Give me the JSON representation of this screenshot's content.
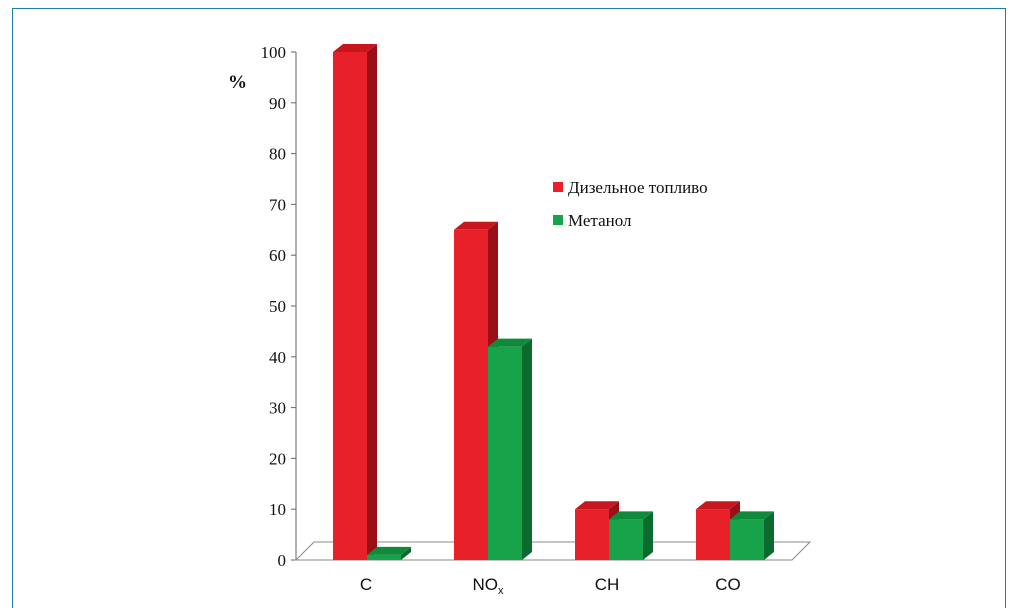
{
  "chart_data": {
    "type": "bar",
    "title": "",
    "ylabel": "%",
    "xlabel": "",
    "ylim": [
      0,
      100
    ],
    "yticks": [
      0,
      10,
      20,
      30,
      40,
      50,
      60,
      70,
      80,
      90,
      100
    ],
    "categories": [
      "C",
      "NOx",
      "CH",
      "CO"
    ],
    "category_labels": [
      {
        "main": "C",
        "sub": ""
      },
      {
        "main": "NO",
        "sub": "x"
      },
      {
        "main": "CH",
        "sub": ""
      },
      {
        "main": "CO",
        "sub": ""
      }
    ],
    "series": [
      {
        "name": "Дизельное топливо",
        "values": [
          100,
          65,
          10,
          10
        ],
        "color": "#e8202a",
        "side_color": "#9a1016",
        "top_color": "#c8161f"
      },
      {
        "name": "Метанол",
        "values": [
          1,
          42,
          8,
          8
        ],
        "color": "#16a34a",
        "side_color": "#0b6b2e",
        "top_color": "#0f8a3b"
      }
    ],
    "legend_position": "center-right",
    "grid": false,
    "style": "3d"
  }
}
